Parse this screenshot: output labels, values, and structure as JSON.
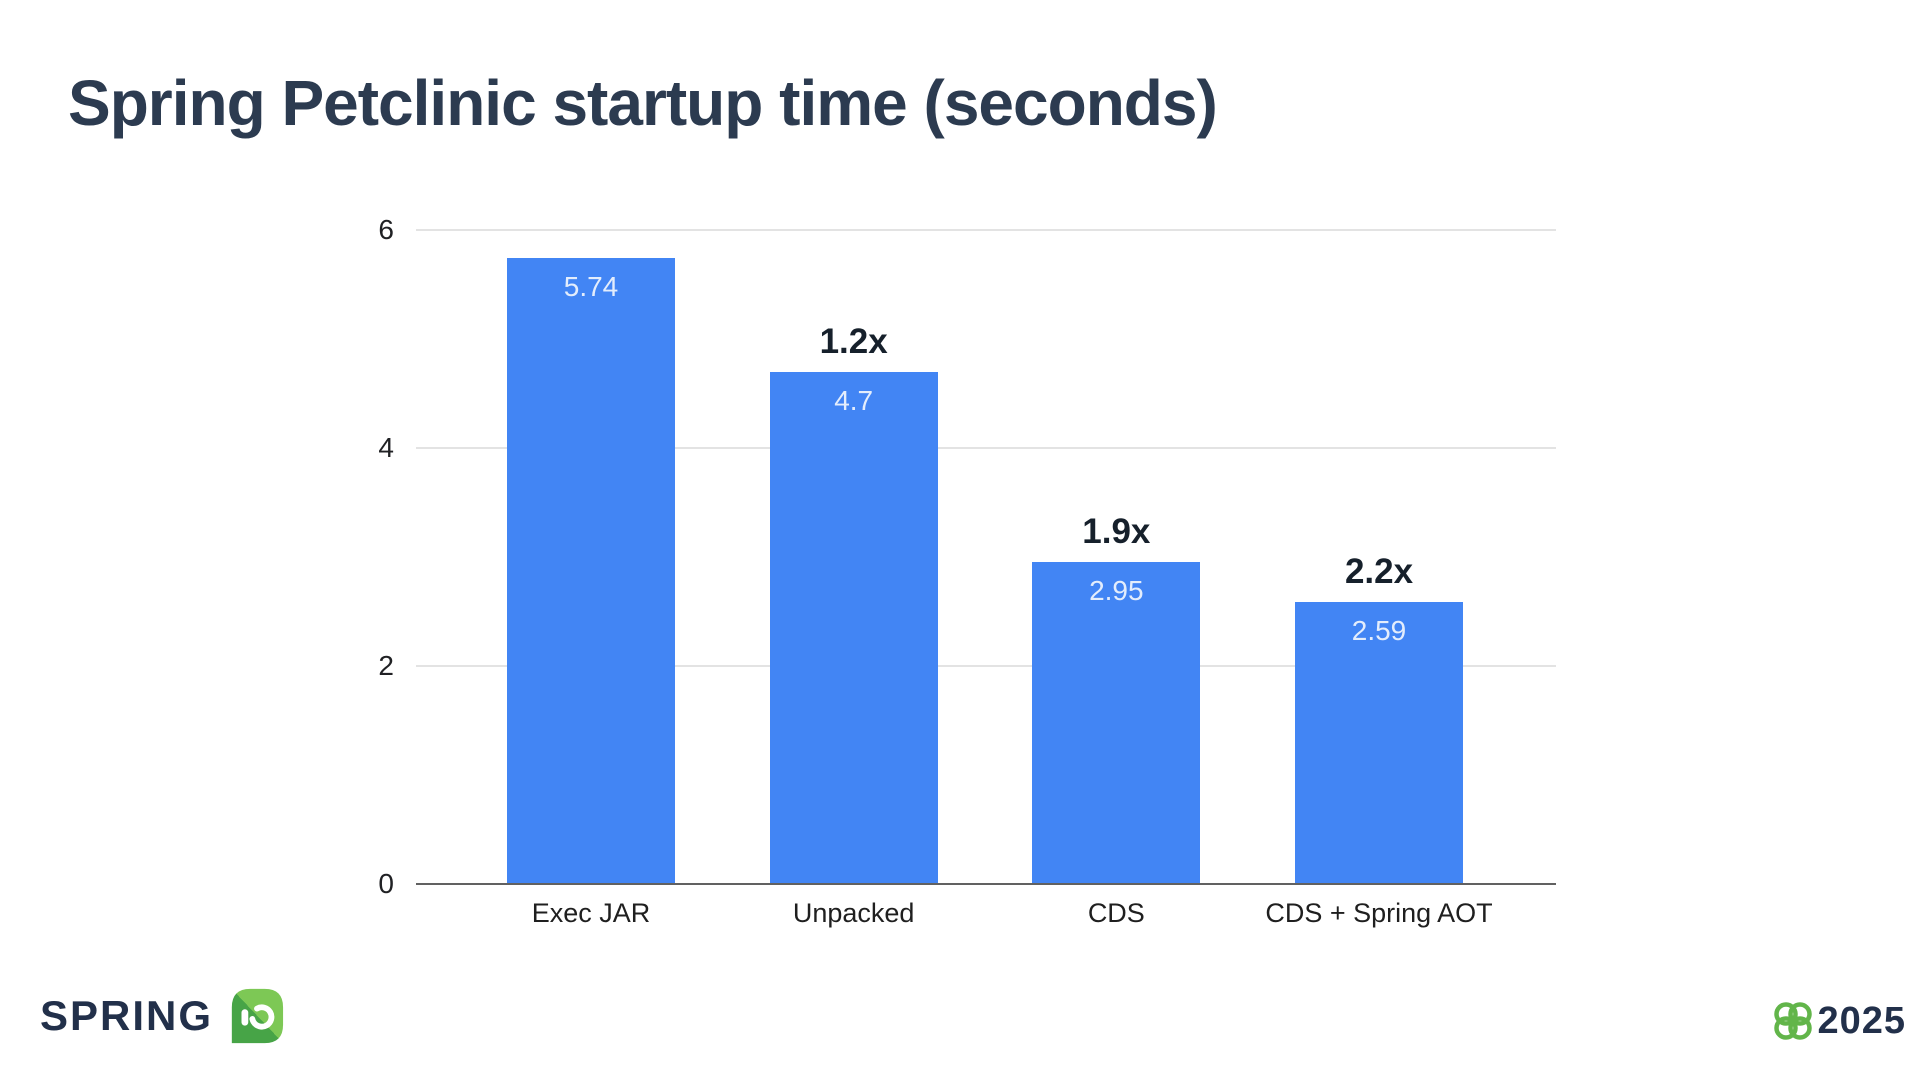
{
  "slide": {
    "title": "Spring Petclinic startup time (seconds)"
  },
  "footer": {
    "brand_text": "SPRING",
    "brand_icon": "springio-leaf-icon",
    "year": "2025",
    "year_icon": "barcelona-flower-icon"
  },
  "chart_data": {
    "type": "bar",
    "title": "Spring Petclinic startup time (seconds)",
    "categories": [
      "Exec JAR",
      "Unpacked",
      "CDS",
      "CDS + Spring AOT"
    ],
    "values": [
      5.74,
      4.7,
      2.95,
      2.59
    ],
    "value_labels": [
      "5.74",
      "4.7",
      "2.95",
      "2.59"
    ],
    "speedup_labels": [
      "",
      "1.2x",
      "1.9x",
      "2.2x"
    ],
    "xlabel": "",
    "ylabel": "",
    "ylim": [
      0,
      6
    ],
    "yticks": [
      0,
      2,
      4,
      6
    ],
    "grid": true,
    "legend": false,
    "bar_color": "#4285f4",
    "bar_value_color": "#e3edfc",
    "speedup_color": "#16202b",
    "gridline_color": "#e3e3e3",
    "axis_line_color": "#616161"
  },
  "colors": {
    "background": "#ffffff",
    "title": "#2c3b50",
    "brand_navy": "#22304a",
    "brand_green": "#62b54a",
    "leaf_green_dark": "#47a447",
    "leaf_green_light": "#7dc855"
  }
}
